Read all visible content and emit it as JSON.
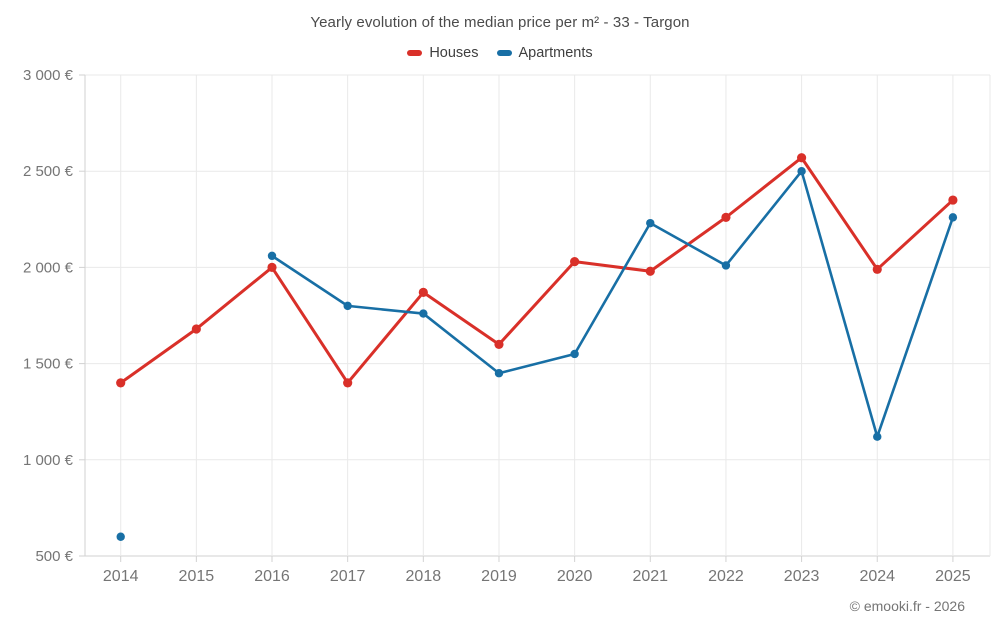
{
  "footer": "© emooki.fr - 2026",
  "chart_data": {
    "type": "line",
    "title": "Yearly evolution of the median price per m² - 33 - Targon",
    "x": [
      "2014",
      "2015",
      "2016",
      "2017",
      "2018",
      "2019",
      "2020",
      "2021",
      "2022",
      "2023",
      "2024",
      "2025"
    ],
    "series": [
      {
        "name": "Houses",
        "color": "#d93029",
        "values": [
          1400,
          1680,
          2000,
          1400,
          1870,
          1600,
          2030,
          1980,
          2260,
          2570,
          1990,
          2350
        ]
      },
      {
        "name": "Apartments",
        "color": "#186fa5",
        "values": [
          600,
          null,
          2060,
          1800,
          1760,
          1450,
          1550,
          2230,
          2010,
          2500,
          1120,
          2260
        ]
      }
    ],
    "ylim": [
      500,
      3000
    ],
    "yticks": [
      {
        "value": 3000,
        "label": "3 000 €"
      },
      {
        "value": 2500,
        "label": "2 500 €"
      },
      {
        "value": 2000,
        "label": "2 000 €"
      },
      {
        "value": 1500,
        "label": "1 500 €"
      },
      {
        "value": 1000,
        "label": "1 000 €"
      },
      {
        "value": 500,
        "label": "500 €"
      }
    ],
    "grid": true,
    "legend_position": "top",
    "xlabel": "",
    "ylabel": ""
  }
}
